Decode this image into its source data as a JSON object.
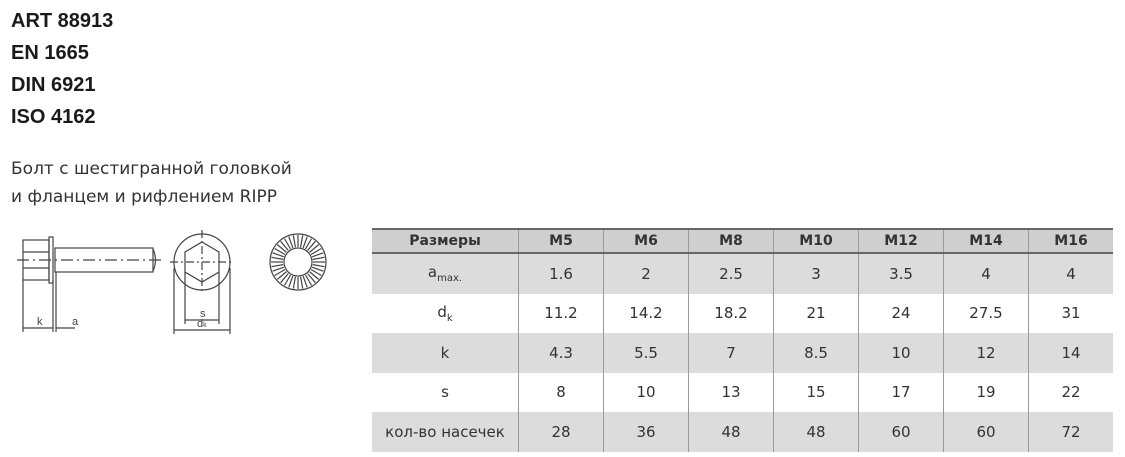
{
  "codes": [
    "ART 88913",
    "EN 1665",
    "DIN 6921",
    "ISO 4162"
  ],
  "description": [
    "Болт с шестигранной головкой",
    "и фланцем и рифлением RIPP"
  ],
  "drawing": {
    "labels": {
      "k": "k",
      "a": "a",
      "s": "s",
      "dk": "d",
      "dk_sub": "k"
    }
  },
  "table": {
    "headers": [
      "Размеры",
      "M5",
      "M6",
      "M8",
      "M10",
      "M12",
      "M14",
      "M16"
    ],
    "rows": [
      {
        "label": "a",
        "sub": "max.",
        "values": [
          "1.6",
          "2",
          "2.5",
          "3",
          "3.5",
          "4",
          "4"
        ]
      },
      {
        "label": "d",
        "sub": "k",
        "values": [
          "11.2",
          "14.2",
          "18.2",
          "21",
          "24",
          "27.5",
          "31"
        ]
      },
      {
        "label": "k",
        "sub": "",
        "values": [
          "4.3",
          "5.5",
          "7",
          "8.5",
          "10",
          "12",
          "14"
        ]
      },
      {
        "label": "s",
        "sub": "",
        "values": [
          "8",
          "10",
          "13",
          "15",
          "17",
          "19",
          "22"
        ]
      },
      {
        "label": "кол-во насечек",
        "sub": "",
        "values": [
          "28",
          "36",
          "48",
          "48",
          "60",
          "60",
          "72"
        ]
      }
    ]
  }
}
